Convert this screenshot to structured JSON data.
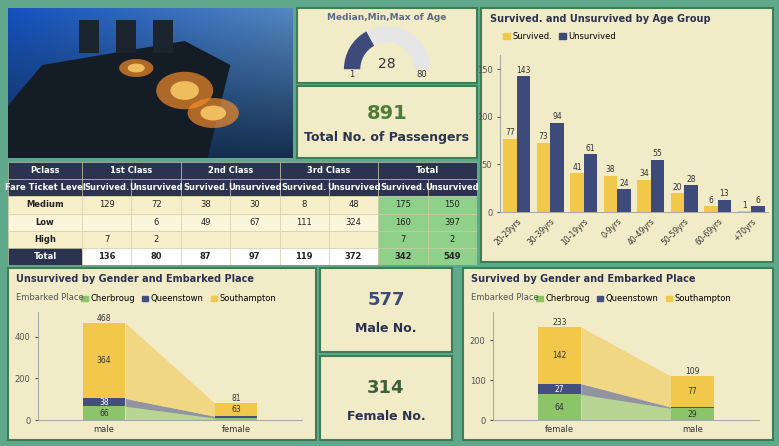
{
  "gauge": {
    "title": "Median,Min,Max of Age",
    "min": 1,
    "value": 28,
    "max": 80
  },
  "kpis": [
    {
      "value": 891,
      "label": "Total No. of Passengers"
    },
    {
      "value": 577,
      "label": "Male No."
    },
    {
      "value": 314,
      "label": "Female No."
    }
  ],
  "table": {
    "corner": "Pclass",
    "groups": [
      "1st Class",
      "2nd Class",
      "3rd Class",
      "Total"
    ],
    "row_header": "Fare Ticket Level",
    "subcolumns": [
      "Survived.",
      "Unsurvived"
    ],
    "rows": [
      {
        "label": "Medium",
        "values": [
          129,
          72,
          38,
          30,
          8,
          48,
          175,
          150
        ]
      },
      {
        "label": "Low",
        "values": [
          null,
          6,
          49,
          67,
          111,
          324,
          160,
          397
        ]
      },
      {
        "label": "High",
        "values": [
          7,
          2,
          null,
          null,
          null,
          null,
          7,
          2
        ]
      },
      {
        "label": "Total",
        "values": [
          136,
          80,
          87,
          97,
          119,
          372,
          342,
          549
        ]
      }
    ]
  },
  "chart_data": [
    {
      "type": "bar",
      "title": "Survived. and Unsurvived by Age Group",
      "categories": [
        "20-29yrs",
        "30-39yrs",
        "10-19yrs",
        "0-9yrs",
        "40-49yrs",
        "50-59yrs",
        "60-69yrs",
        "+70yrs"
      ],
      "series": [
        {
          "name": "Survived.",
          "color": "#f2c84b",
          "values": [
            77,
            73,
            41,
            38,
            34,
            20,
            6,
            1
          ]
        },
        {
          "name": "Unsurvived",
          "color": "#3d4a7a",
          "values": [
            143,
            94,
            61,
            24,
            55,
            28,
            13,
            6
          ]
        }
      ],
      "ylim": [
        0,
        165
      ],
      "yticks": [
        0,
        50,
        100,
        150
      ],
      "grid": false,
      "legend": "upper left",
      "stacked": false,
      "data_labels": true
    },
    {
      "type": "bar",
      "title": "Unsurvived by Gender and Embarked Place",
      "legend_title": "Embarked Place",
      "categories": [
        "male",
        "female"
      ],
      "series": [
        {
          "name": "Cherbroug",
          "color": "#8cc46a",
          "values": [
            66,
            9
          ],
          "value_labels": [
            "66",
            null
          ]
        },
        {
          "name": "Queenstown",
          "color": "#444f80",
          "values": [
            38,
            9
          ],
          "value_labels": [
            "38",
            null
          ]
        },
        {
          "name": "Southampton",
          "color": "#f2c84b",
          "values": [
            364,
            63
          ],
          "value_labels": [
            "364",
            "63"
          ]
        }
      ],
      "totals": [
        468,
        81
      ],
      "ylim": [
        0,
        520
      ],
      "yticks": [
        0,
        200,
        400
      ],
      "grid": false,
      "legend": "upper left",
      "stacked": true,
      "data_labels": true
    },
    {
      "type": "bar",
      "title": "Survived by Gender and Embarked Place",
      "legend_title": "Embarked Place",
      "categories": [
        "female",
        "male"
      ],
      "series": [
        {
          "name": "Cherbroug",
          "color": "#8cc46a",
          "values": [
            64,
            29
          ],
          "value_labels": [
            "64",
            "29"
          ]
        },
        {
          "name": "Queenstown",
          "color": "#444f80",
          "values": [
            27,
            3
          ],
          "value_labels": [
            "27",
            null
          ]
        },
        {
          "name": "Southampton",
          "color": "#f2c84b",
          "values": [
            142,
            77
          ],
          "value_labels": [
            "142",
            "77"
          ]
        }
      ],
      "totals": [
        233,
        109
      ],
      "ylim": [
        0,
        270
      ],
      "yticks": [
        0,
        100,
        200
      ],
      "grid": false,
      "legend": "upper left",
      "stacked": true,
      "data_labels": true
    }
  ]
}
